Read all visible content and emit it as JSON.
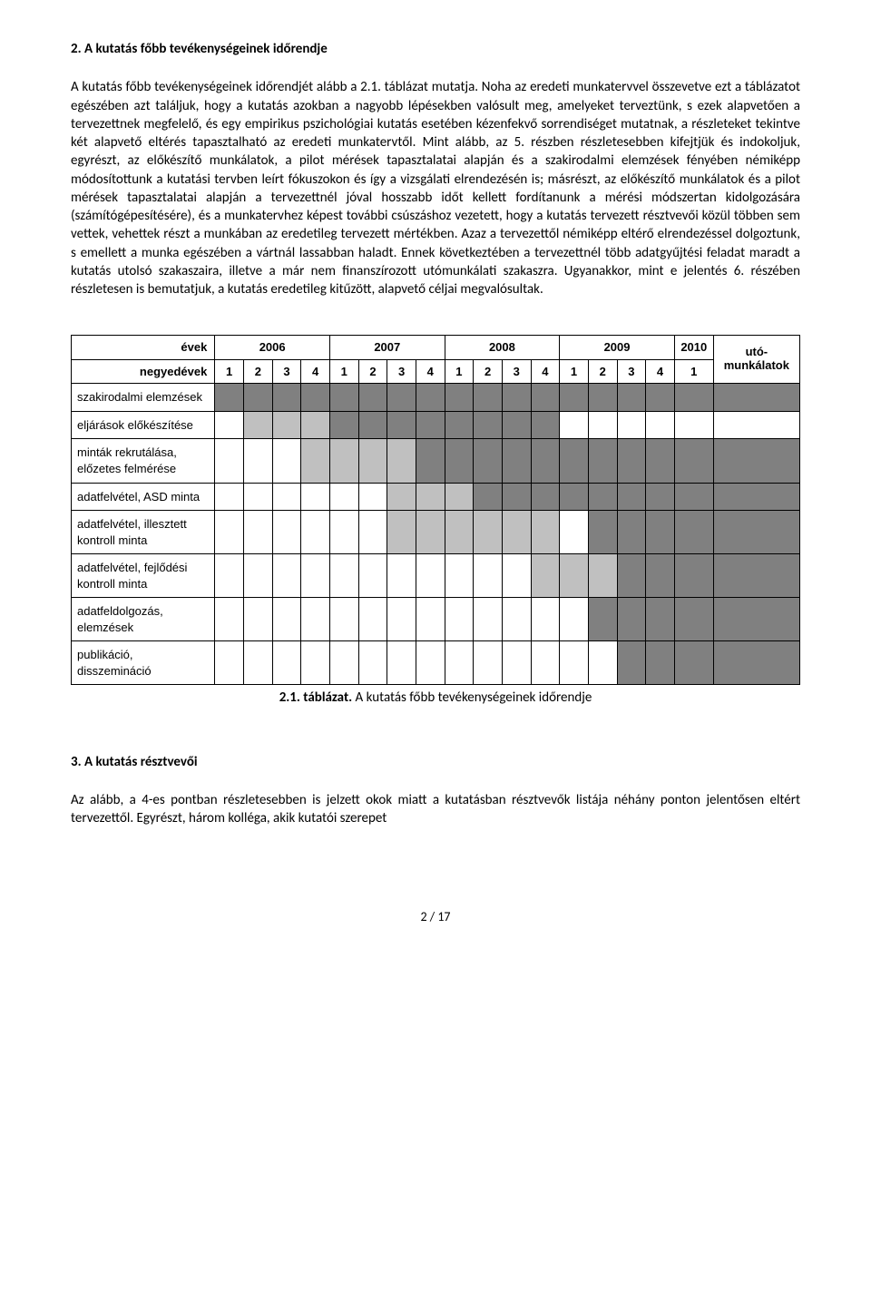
{
  "section2": {
    "heading": "2. A kutatás főbb tevékenységeinek időrendje",
    "para1": "A kutatás főbb tevékenységeinek időrendjét alább a 2.1. táblázat mutatja. Noha az eredeti munkatervvel összevetve ezt a táblázatot egészében azt találjuk, hogy a kutatás azokban a nagyobb lépésekben valósult meg, amelyeket terveztünk, s ezek alapvetően a tervezettnek megfelelő, és egy empirikus pszichológiai kutatás esetében kézenfekvő sorrendiséget mutatnak, a részleteket tekintve két alapvető eltérés tapasztalható az eredeti munkatervtől. Mint alább, az 5. részben részletesebben kifejtjük és indokoljuk, egyrészt, az előkészítő munkálatok, a pilot mérések tapasztalatai alapján és a szakirodalmi elemzések fényében némiképp módosítottunk a kutatási tervben leírt fókuszokon és így a vizsgálati elrendezésén is; másrészt, az előkészítő munkálatok és a pilot mérések tapasztalatai alapján a tervezettnél jóval hosszabb időt kellett fordítanunk a mérési módszertan kidolgozására (számítógépesítésére), és a munkatervhez képest további csúszáshoz vezetett, hogy a kutatás tervezett résztvevői közül többen sem vettek, vehettek részt a munkában az eredetileg tervezett mértékben. Azaz a tervezettől némiképp eltérő elrendezéssel dolgoztunk, s emellett a munka egészében a vártnál lassabban haladt. Ennek következtében a tervezettnél több adatgyűjtési feladat maradt a kutatás utolsó szakaszaira, illetve a már nem finanszírozott utómunkálati szakaszra. Ugyanakkor, mint e jelentés 6. részében részletesen is bemutatjuk, a kutatás eredetileg kitűzött, alapvető céljai megvalósultak."
  },
  "gantt": {
    "years_label": "évek",
    "quarters_label": "negyedévek",
    "years": [
      "2006",
      "2007",
      "2008",
      "2009",
      "2010"
    ],
    "quarters_per_year": [
      "1",
      "2",
      "3",
      "4"
    ],
    "last_year_quarters": [
      "1"
    ],
    "uto_label": "utó-munkálatok",
    "colors": {
      "light": "#c0c0c0",
      "dark": "#808080",
      "border": "#000000",
      "bg": "#ffffff"
    },
    "rows": [
      {
        "label": "szakirodalmi elemzések",
        "cells": [
          "dark",
          "dark",
          "dark",
          "dark",
          "dark",
          "dark",
          "dark",
          "dark",
          "dark",
          "dark",
          "dark",
          "dark",
          "dark",
          "dark",
          "dark",
          "dark",
          "dark",
          "dark"
        ]
      },
      {
        "label": "eljárások előkészítése",
        "cells": [
          "",
          "light",
          "light",
          "light",
          "dark",
          "dark",
          "dark",
          "dark",
          "dark",
          "dark",
          "dark",
          "dark",
          "",
          "",
          "",
          "",
          "",
          ""
        ]
      },
      {
        "label": "minták rekrutálása, előzetes felmérése",
        "cells": [
          "",
          "",
          "",
          "light",
          "light",
          "light",
          "light",
          "dark",
          "dark",
          "dark",
          "dark",
          "dark",
          "dark",
          "dark",
          "dark",
          "dark",
          "dark",
          "dark"
        ]
      },
      {
        "label": "adatfelvétel, ASD minta",
        "cells": [
          "",
          "",
          "",
          "",
          "",
          "",
          "light",
          "light",
          "light",
          "dark",
          "dark",
          "dark",
          "dark",
          "dark",
          "dark",
          "dark",
          "dark",
          "dark"
        ]
      },
      {
        "label": "adatfelvétel, illesztett kontroll minta",
        "cells": [
          "",
          "",
          "",
          "",
          "",
          "",
          "light",
          "light",
          "light",
          "light",
          "light",
          "light",
          "",
          "dark",
          "dark",
          "dark",
          "dark",
          "dark"
        ]
      },
      {
        "label": "adatfelvétel, fejlődési kontroll minta",
        "cells": [
          "",
          "",
          "",
          "",
          "",
          "",
          "",
          "",
          "",
          "",
          "",
          "light",
          "light",
          "light",
          "dark",
          "dark",
          "dark",
          "dark"
        ]
      },
      {
        "label": "adatfeldolgozás, elemzések",
        "cells": [
          "",
          "",
          "",
          "",
          "",
          "",
          "",
          "",
          "",
          "",
          "",
          "",
          "",
          "dark",
          "dark",
          "dark",
          "dark",
          "dark"
        ]
      },
      {
        "label": "publikáció, disszemináció",
        "cells": [
          "",
          "",
          "",
          "",
          "",
          "",
          "",
          "",
          "",
          "",
          "",
          "",
          "",
          "",
          "dark",
          "dark",
          "dark",
          "dark"
        ]
      }
    ],
    "caption_bold": "2.1. táblázat.",
    "caption_rest": " A kutatás főbb tevékenységeinek időrendje"
  },
  "section3": {
    "heading": "3. A kutatás résztvevői",
    "para": "Az alább, a 4-es pontban részletesebben is jelzett okok miatt a kutatásban résztvevők listája néhány ponton jelentősen eltért tervezettől. Egyrészt, három kolléga, akik kutatói szerepet"
  },
  "footer": "2 / 17"
}
